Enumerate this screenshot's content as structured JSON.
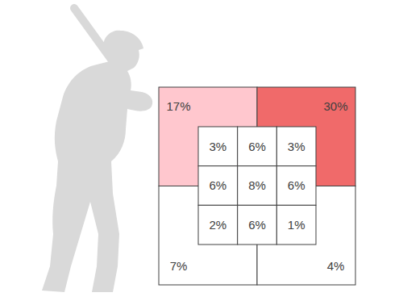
{
  "chart_data": {
    "type": "heatmap",
    "outer_zones": {
      "values": [
        17,
        30,
        7,
        4
      ],
      "value_labels": [
        "17%",
        "30%",
        "7%",
        "4%"
      ],
      "colors": [
        "#ffc7ce",
        "#f06a6a",
        "#ffffff",
        "#ffffff"
      ]
    },
    "cells": {
      "values": [
        [
          3,
          6,
          3
        ],
        [
          6,
          8,
          6
        ],
        [
          2,
          6,
          1
        ]
      ],
      "value_labels": [
        [
          "3%",
          "6%",
          "3%"
        ],
        [
          "6%",
          "8%",
          "6%"
        ],
        [
          "2%",
          "6%",
          "1%"
        ]
      ],
      "color": "#ffffff"
    },
    "tick_labels": false
  }
}
